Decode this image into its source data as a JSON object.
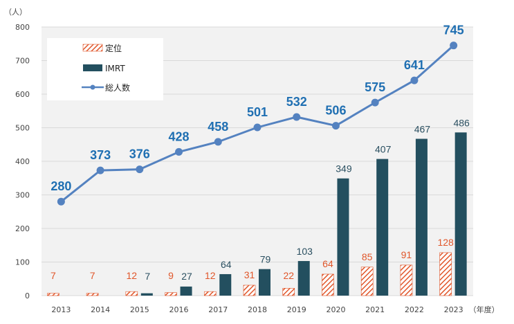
{
  "chart_data": {
    "type": "bar",
    "y_unit_label": "（人）",
    "x_unit_label": "（年度）",
    "categories": [
      "2013",
      "2014",
      "2015",
      "2016",
      "2017",
      "2018",
      "2019",
      "2020",
      "2021",
      "2022",
      "2023"
    ],
    "ylim": [
      0,
      800
    ],
    "yticks": [
      0,
      100,
      200,
      300,
      400,
      500,
      600,
      700,
      800
    ],
    "grid": true,
    "legend_position": "top-left",
    "series": [
      {
        "name": "定位",
        "kind": "bar",
        "pattern": "diagonal-hatch",
        "color": "#e0562a",
        "values": [
          7,
          7,
          12,
          9,
          12,
          31,
          22,
          64,
          85,
          91,
          128
        ]
      },
      {
        "name": "IMRT",
        "kind": "bar",
        "color": "#234f5f",
        "values": [
          null,
          null,
          7,
          27,
          64,
          79,
          103,
          349,
          407,
          467,
          486
        ]
      },
      {
        "name": "総人数",
        "kind": "line",
        "marker": "circle",
        "color": "#5482c0",
        "label_color": "#1f6fb2",
        "values": [
          280,
          373,
          376,
          428,
          458,
          501,
          532,
          506,
          575,
          641,
          745
        ]
      }
    ]
  }
}
